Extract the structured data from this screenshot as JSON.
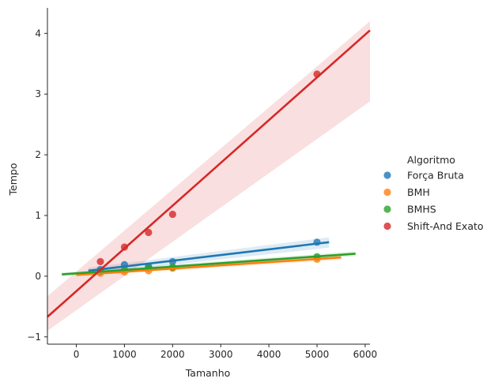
{
  "chart_data": {
    "type": "scatter",
    "title": "",
    "xlabel": "Tamanho",
    "ylabel": "Tempo",
    "xlim": [
      -600,
      6100
    ],
    "ylim": [
      -1.12,
      4.42
    ],
    "xticks": [
      0,
      1000,
      2000,
      3000,
      4000,
      5000,
      6000
    ],
    "yticks": [
      -1,
      0,
      1,
      2,
      3,
      4
    ],
    "grid": false,
    "legend": {
      "title": "Algoritmo",
      "position": "right"
    },
    "series": [
      {
        "name": "Força Bruta",
        "color": "#1f77b4",
        "x": [
          500,
          1000,
          1500,
          2000,
          5000
        ],
        "y": [
          0.11,
          0.19,
          0.16,
          0.24,
          0.56
        ],
        "fit": {
          "x_range": [
            250,
            5250
          ],
          "y_range": [
            0.09,
            0.56
          ]
        },
        "ci_band": {
          "x_range": [
            250,
            5250
          ],
          "lower": [
            0.04,
            0.47
          ],
          "upper": [
            0.14,
            0.64
          ]
        }
      },
      {
        "name": "BMH",
        "color": "#ff7f0e",
        "x": [
          500,
          1000,
          1500,
          2000,
          5000
        ],
        "y": [
          0.05,
          0.07,
          0.09,
          0.13,
          0.28
        ],
        "fit": {
          "x_range": [
            0,
            5500
          ],
          "y_range": [
            0.02,
            0.31
          ]
        },
        "ci_band": {
          "x_range": [
            0,
            5500
          ],
          "lower": [
            0.0,
            0.27
          ],
          "upper": [
            0.05,
            0.35
          ]
        }
      },
      {
        "name": "BMHS",
        "color": "#2ca02c",
        "x": [
          500,
          1000,
          1500,
          2000,
          5000
        ],
        "y": [
          0.08,
          0.11,
          0.14,
          0.15,
          0.32
        ],
        "fit": {
          "x_range": [
            -300,
            5800
          ],
          "y_range": [
            0.03,
            0.37
          ]
        },
        "ci_band": {
          "x_range": [
            -300,
            5800
          ],
          "lower": [
            0.0,
            0.33
          ],
          "upper": [
            0.06,
            0.41
          ]
        }
      },
      {
        "name": "Shift-And Exato",
        "color": "#d62728",
        "x": [
          500,
          1000,
          1500,
          2000,
          5000
        ],
        "y": [
          0.24,
          0.48,
          0.72,
          1.02,
          3.33
        ],
        "fit": {
          "x_range": [
            -600,
            6100
          ],
          "y_range": [
            -0.67,
            4.05
          ]
        },
        "ci_band": {
          "x_range": [
            -600,
            6100
          ],
          "lower": [
            -0.9,
            2.88
          ],
          "upper": [
            -0.33,
            4.2
          ]
        }
      }
    ]
  }
}
